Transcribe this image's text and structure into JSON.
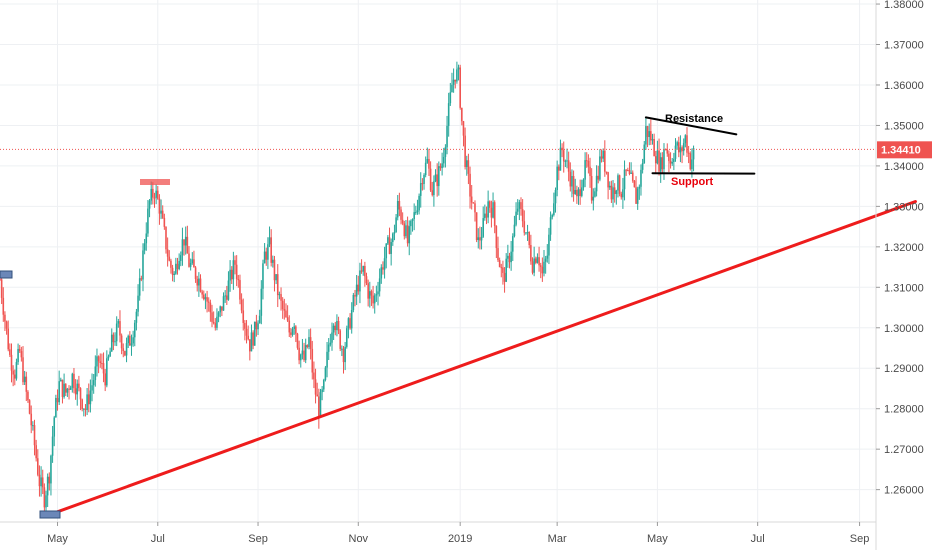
{
  "chart_data": {
    "type": "candlestick",
    "symbol_price_label": "1.34410",
    "current_price": 1.3441,
    "y_axis": {
      "range": [
        1.252,
        1.381
      ],
      "ticks": [
        "1.38000",
        "1.37000",
        "1.36000",
        "1.35000",
        "1.34000",
        "1.33000",
        "1.32000",
        "1.31000",
        "1.30000",
        "1.29000",
        "1.28000",
        "1.27000",
        "1.26000"
      ],
      "tick_values": [
        1.38,
        1.37,
        1.36,
        1.35,
        1.34,
        1.33,
        1.32,
        1.31,
        1.3,
        1.29,
        1.28,
        1.27,
        1.26
      ]
    },
    "x_axis": {
      "range_days": [
        0,
        533
      ],
      "ticks": [
        "May",
        "Jul",
        "Sep",
        "Nov",
        "2019",
        "Mar",
        "May",
        "Jul",
        "Sep"
      ],
      "tick_days": [
        35,
        96,
        157,
        218,
        280,
        339,
        400,
        461,
        523
      ]
    },
    "grid": true,
    "colors": {
      "up": "#26a69a",
      "down": "#ef5350",
      "trendline": "#ee1c1c",
      "annotation_line": "#000000",
      "price_line": "#ef5350",
      "support_text": "#e8000b",
      "resistance_text": "#000000"
    },
    "annotations": {
      "resistance": "Resistance",
      "support": "Support"
    },
    "trend_lines": [
      {
        "name": "uptrend",
        "points": [
          [
            28,
            1.2535
          ],
          [
            557,
            1.3312
          ]
        ]
      },
      {
        "name": "resistance",
        "points": [
          [
            393,
            1.352
          ],
          [
            448,
            1.3478
          ]
        ]
      },
      {
        "name": "support",
        "points": [
          [
            397,
            1.3382
          ],
          [
            459,
            1.3381
          ]
        ]
      }
    ],
    "price_path": [
      [
        0,
        1.312
      ],
      [
        3,
        1.302
      ],
      [
        6,
        1.293
      ],
      [
        9,
        1.289
      ],
      [
        12,
        1.294
      ],
      [
        15,
        1.286
      ],
      [
        18,
        1.279
      ],
      [
        21,
        1.271
      ],
      [
        24,
        1.262
      ],
      [
        27,
        1.258
      ],
      [
        30,
        1.264
      ],
      [
        33,
        1.278
      ],
      [
        36,
        1.286
      ],
      [
        40,
        1.284
      ],
      [
        44,
        1.288
      ],
      [
        48,
        1.284
      ],
      [
        52,
        1.28
      ],
      [
        56,
        1.286
      ],
      [
        60,
        1.292
      ],
      [
        64,
        1.288
      ],
      [
        68,
        1.296
      ],
      [
        72,
        1.3
      ],
      [
        76,
        1.294
      ],
      [
        80,
        1.298
      ],
      [
        84,
        1.306
      ],
      [
        88,
        1.322
      ],
      [
        91,
        1.331
      ],
      [
        94,
        1.334
      ],
      [
        97,
        1.33
      ],
      [
        100,
        1.323
      ],
      [
        103,
        1.316
      ],
      [
        106,
        1.313
      ],
      [
        109,
        1.319
      ],
      [
        112,
        1.322
      ],
      [
        115,
        1.316
      ],
      [
        118,
        1.314
      ],
      [
        121,
        1.312
      ],
      [
        125,
        1.308
      ],
      [
        128,
        1.304
      ],
      [
        131,
        1.3
      ],
      [
        134,
        1.304
      ],
      [
        137,
        1.308
      ],
      [
        140,
        1.312
      ],
      [
        143,
        1.316
      ],
      [
        146,
        1.309
      ],
      [
        149,
        1.301
      ],
      [
        152,
        1.296
      ],
      [
        155,
        1.299
      ],
      [
        158,
        1.305
      ],
      [
        161,
        1.318
      ],
      [
        164,
        1.32
      ],
      [
        167,
        1.313
      ],
      [
        170,
        1.307
      ],
      [
        173,
        1.303
      ],
      [
        176,
        1.299
      ],
      [
        179,
        1.302
      ],
      [
        182,
        1.294
      ],
      [
        185,
        1.292
      ],
      [
        188,
        1.297
      ],
      [
        191,
        1.286
      ],
      [
        194,
        1.28
      ],
      [
        197,
        1.285
      ],
      [
        200,
        1.296
      ],
      [
        203,
        1.303
      ],
      [
        206,
        1.298
      ],
      [
        209,
        1.294
      ],
      [
        212,
        1.3
      ],
      [
        215,
        1.306
      ],
      [
        218,
        1.311
      ],
      [
        221,
        1.314
      ],
      [
        224,
        1.309
      ],
      [
        227,
        1.306
      ],
      [
        230,
        1.311
      ],
      [
        233,
        1.316
      ],
      [
        236,
        1.32
      ],
      [
        239,
        1.322
      ],
      [
        242,
        1.33
      ],
      [
        245,
        1.327
      ],
      [
        248,
        1.321
      ],
      [
        251,
        1.326
      ],
      [
        254,
        1.331
      ],
      [
        257,
        1.338
      ],
      [
        260,
        1.341
      ],
      [
        263,
        1.334
      ],
      [
        266,
        1.337
      ],
      [
        269,
        1.341
      ],
      [
        272,
        1.35
      ],
      [
        275,
        1.36
      ],
      [
        277,
        1.363
      ],
      [
        279,
        1.362
      ],
      [
        281,
        1.351
      ],
      [
        283,
        1.342
      ],
      [
        285,
        1.336
      ],
      [
        288,
        1.329
      ],
      [
        291,
        1.321
      ],
      [
        294,
        1.325
      ],
      [
        297,
        1.331
      ],
      [
        300,
        1.329
      ],
      [
        303,
        1.318
      ],
      [
        306,
        1.312
      ],
      [
        309,
        1.316
      ],
      [
        312,
        1.322
      ],
      [
        315,
        1.33
      ],
      [
        318,
        1.327
      ],
      [
        321,
        1.322
      ],
      [
        324,
        1.316
      ],
      [
        327,
        1.319
      ],
      [
        330,
        1.313
      ],
      [
        333,
        1.318
      ],
      [
        336,
        1.33
      ],
      [
        339,
        1.339
      ],
      [
        342,
        1.344
      ],
      [
        345,
        1.34
      ],
      [
        348,
        1.336
      ],
      [
        351,
        1.331
      ],
      [
        354,
        1.337
      ],
      [
        357,
        1.34
      ],
      [
        360,
        1.333
      ],
      [
        363,
        1.337
      ],
      [
        366,
        1.343
      ],
      [
        369,
        1.339
      ],
      [
        372,
        1.333
      ],
      [
        375,
        1.336
      ],
      [
        378,
        1.334
      ],
      [
        381,
        1.338
      ],
      [
        384,
        1.336
      ],
      [
        387,
        1.332
      ],
      [
        390,
        1.338
      ],
      [
        393,
        1.349
      ],
      [
        396,
        1.347
      ],
      [
        399,
        1.343
      ],
      [
        402,
        1.34
      ],
      [
        405,
        1.345
      ],
      [
        408,
        1.341
      ],
      [
        411,
        1.345
      ],
      [
        414,
        1.343
      ],
      [
        417,
        1.347
      ],
      [
        420,
        1.341
      ],
      [
        423,
        1.344
      ]
    ]
  }
}
